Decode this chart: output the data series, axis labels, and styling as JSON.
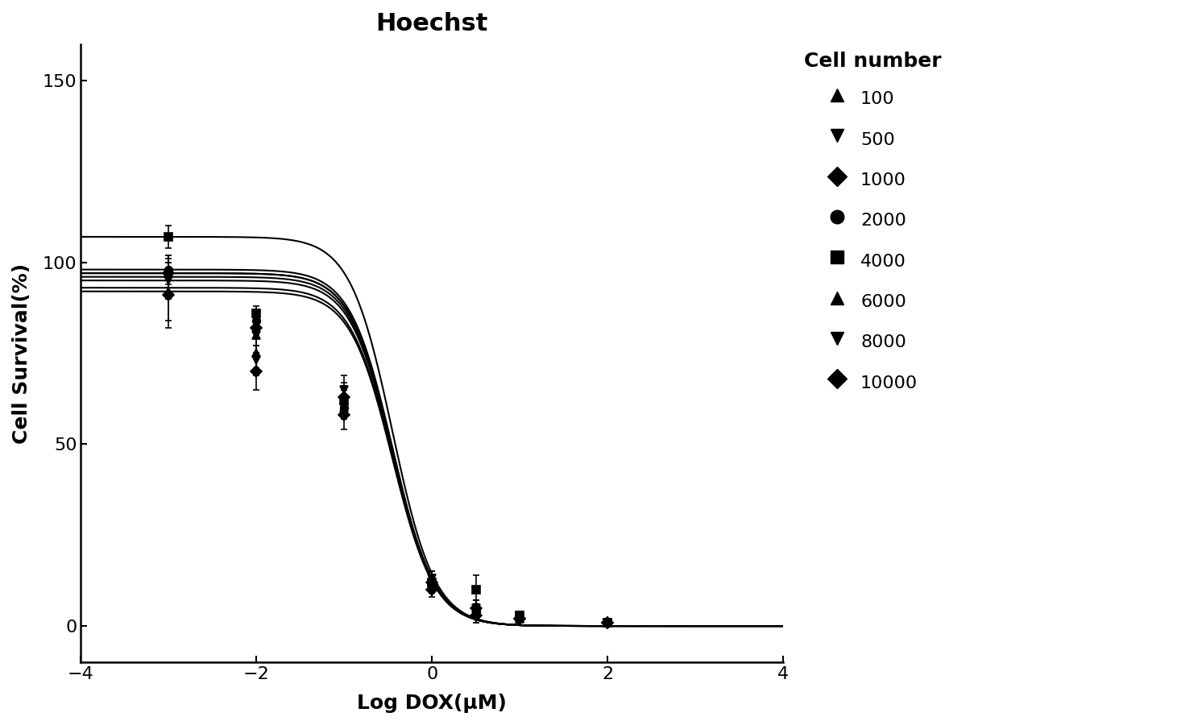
{
  "title": "Hoechst",
  "xlabel": "Log DOX(μM)",
  "ylabel": "Cell Survival(%)",
  "xlim": [
    -4,
    4
  ],
  "ylim": [
    -10,
    160
  ],
  "yticks": [
    0,
    50,
    100,
    150
  ],
  "xticks": [
    -4,
    -2,
    0,
    2,
    4
  ],
  "background_color": "#ffffff",
  "line_color": "#000000",
  "title_fontsize": 22,
  "label_fontsize": 18,
  "tick_fontsize": 16,
  "legend_title": "Cell number",
  "series": [
    {
      "label": "100",
      "marker": "^",
      "top": 92,
      "ec50_log": -0.45,
      "hill": 1.8
    },
    {
      "label": "500",
      "marker": "v",
      "top": 96,
      "ec50_log": -0.45,
      "hill": 1.8
    },
    {
      "label": "1000",
      "marker": "D",
      "top": 97,
      "ec50_log": -0.45,
      "hill": 1.8
    },
    {
      "label": "2000",
      "marker": "o",
      "top": 98,
      "ec50_log": -0.45,
      "hill": 1.8
    },
    {
      "label": "4000",
      "marker": "s",
      "top": 107,
      "ec50_log": -0.45,
      "hill": 1.8
    },
    {
      "label": "6000",
      "marker": "^",
      "top": 97,
      "ec50_log": -0.45,
      "hill": 1.8
    },
    {
      "label": "8000",
      "marker": "v",
      "top": 95,
      "ec50_log": -0.45,
      "hill": 1.8
    },
    {
      "label": "10000",
      "marker": "D",
      "top": 93,
      "ec50_log": -0.45,
      "hill": 1.8
    }
  ],
  "data_points": {
    "100": {
      "x": [
        -3.0,
        -2.0,
        -1.0,
        0.0,
        0.5,
        1.0,
        2.0
      ],
      "y": [
        92,
        75,
        62,
        12,
        4,
        2,
        1
      ],
      "yerr": [
        8,
        4,
        5,
        3,
        2,
        1,
        0.5
      ]
    },
    "500": {
      "x": [
        -3.0,
        -2.0,
        -1.0,
        0.0,
        0.5,
        1.0,
        2.0
      ],
      "y": [
        96,
        80,
        65,
        13,
        5,
        3,
        1
      ],
      "yerr": [
        6,
        3,
        4,
        2,
        2,
        1,
        0.5
      ]
    },
    "1000": {
      "x": [
        -3.0,
        -2.0,
        -1.0,
        0.0,
        0.5,
        1.0,
        2.0
      ],
      "y": [
        97,
        82,
        63,
        12,
        5,
        2,
        1
      ],
      "yerr": [
        5,
        3,
        3,
        2,
        2,
        1,
        0.5
      ]
    },
    "2000": {
      "x": [
        -3.0,
        -2.0,
        -1.0,
        0.0,
        0.5,
        1.0,
        2.0
      ],
      "y": [
        98,
        84,
        60,
        11,
        4,
        2,
        1
      ],
      "yerr": [
        4,
        3,
        3,
        2,
        2,
        1,
        0.5
      ]
    },
    "4000": {
      "x": [
        -3.0,
        -2.0,
        -1.0,
        0.0,
        0.5,
        1.0,
        2.0
      ],
      "y": [
        107,
        86,
        62,
        12,
        10,
        3,
        1
      ],
      "yerr": [
        3,
        2,
        3,
        2,
        4,
        1,
        0.5
      ]
    },
    "6000": {
      "x": [
        -3.0,
        -2.0,
        -1.0,
        0.0,
        0.5,
        1.0,
        2.0
      ],
      "y": [
        97,
        80,
        60,
        11,
        4,
        2,
        1
      ],
      "yerr": [
        4,
        3,
        3,
        2,
        2,
        1,
        0.5
      ]
    },
    "8000": {
      "x": [
        -3.0,
        -2.0,
        -1.0,
        0.0,
        0.5,
        1.0,
        2.0
      ],
      "y": [
        95,
        73,
        60,
        11,
        3,
        2,
        1
      ],
      "yerr": [
        5,
        4,
        3,
        2,
        2,
        1,
        0.5
      ]
    },
    "10000": {
      "x": [
        -3.0,
        -2.0,
        -1.0,
        0.0,
        0.5,
        1.0,
        2.0
      ],
      "y": [
        91,
        70,
        58,
        10,
        3,
        2,
        1
      ],
      "yerr": [
        9,
        5,
        4,
        2,
        2,
        1,
        0.5
      ]
    }
  },
  "legend_markers": [
    "^",
    "v",
    "D",
    "o",
    "s",
    "^",
    "v",
    "D"
  ],
  "legend_labels": [
    "100",
    "500",
    "1000",
    "2000",
    "4000",
    "6000",
    "8000",
    "10000"
  ]
}
